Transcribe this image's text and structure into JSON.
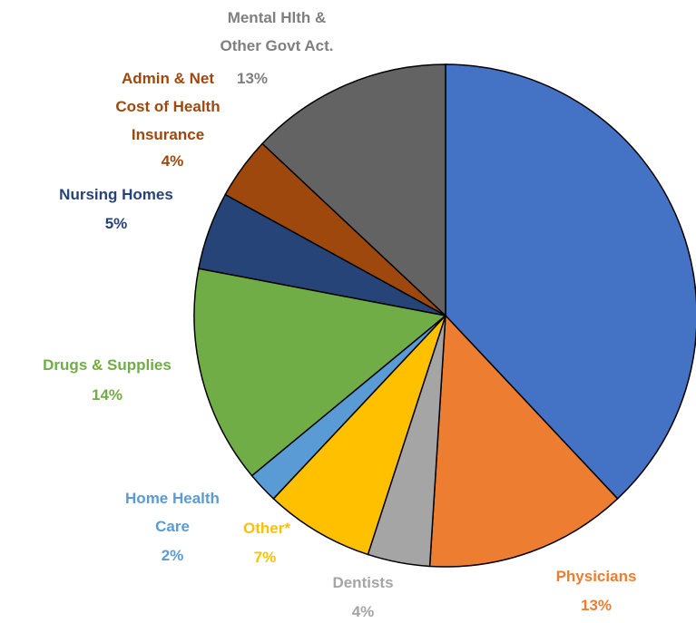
{
  "chart_data": {
    "type": "pie",
    "categories": [
      null,
      "Physicians",
      "Dentists",
      "Other*",
      "Home Health Care",
      "Drugs & Supplies",
      "Nursing Homes",
      "Admin & Net Cost of Health Insurance",
      "Mental Hlth & Other Govt Act."
    ],
    "values": [
      38,
      13,
      4,
      7,
      2,
      14,
      5,
      4,
      13
    ],
    "value_labels": [
      null,
      "13%",
      "4%",
      "7%",
      "2%",
      "14%",
      "5%",
      "4%",
      "13%"
    ],
    "colors": [
      "#4472c4",
      "#ed7d31",
      "#a5a5a5",
      "#ffc000",
      "#5b9bd5",
      "#70ad47",
      "#264478",
      "#9e480e",
      "#636363"
    ]
  }
}
